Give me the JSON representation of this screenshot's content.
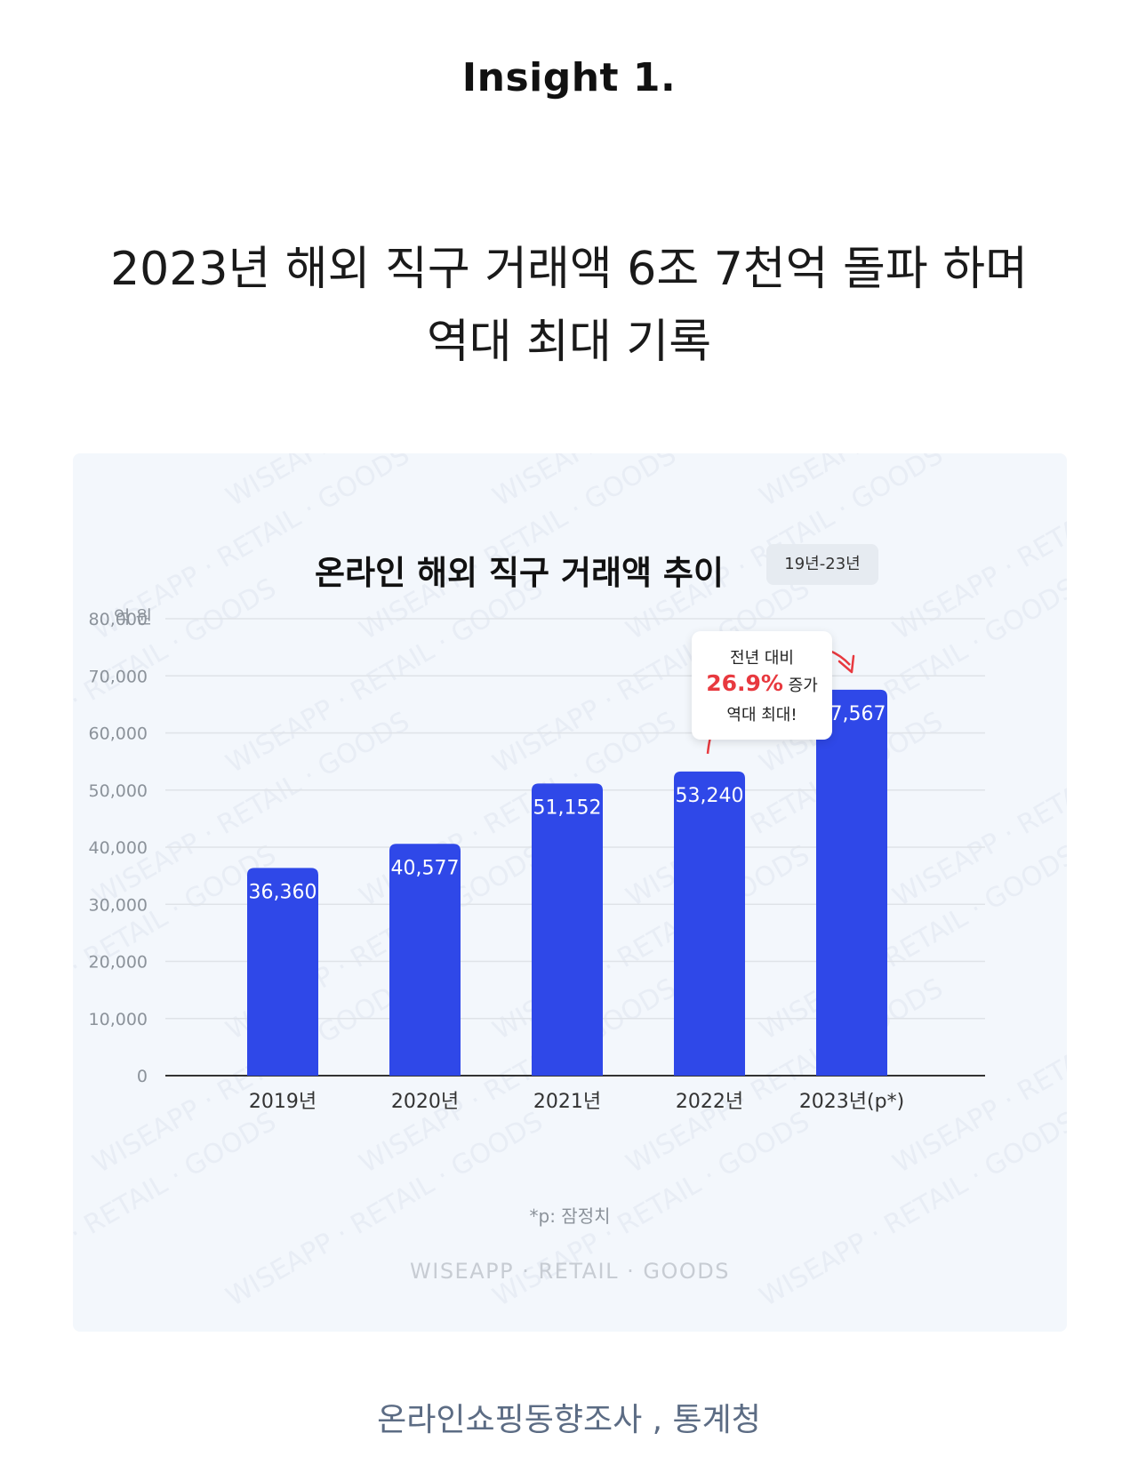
{
  "insight_label": "Insight 1.",
  "headline": {
    "line1": "2023년 해외 직구 거래액 6조 7천억 돌파 하며",
    "line2": "역대 최대 기록"
  },
  "chart_data": {
    "type": "bar",
    "title": "온라인 해외 직구 거래액 추이",
    "period_badge": "19년-23년",
    "ylabel": "억 원",
    "xlabel": "",
    "categories": [
      "2019년",
      "2020년",
      "2021년",
      "2022년",
      "2023년(p*)"
    ],
    "values": [
      36360,
      40577,
      51152,
      53240,
      67567
    ],
    "value_labels": [
      "36,360",
      "40,577",
      "51,152",
      "53,240",
      "67,567"
    ],
    "ylim": [
      0,
      80000
    ],
    "yticks": [
      "0",
      "10,000",
      "20,000",
      "30,000",
      "40,000",
      "50,000",
      "60,000",
      "70,000",
      "80,000"
    ],
    "grid": true,
    "bar_color": "#2f48e8",
    "annotation": {
      "line1": "전년 대비",
      "growth": "26.9%",
      "growth_suffix": "증가",
      "line3": "역대 최대!",
      "color": "#e8393f"
    },
    "footnote": "*p: 잠정치"
  },
  "watermark_text": "WISEAPP · RETAIL · GOODS",
  "brand_text": "WISEAPP · RETAIL · GOODS",
  "source": "온라인쇼핑동향조사 , 통계청"
}
